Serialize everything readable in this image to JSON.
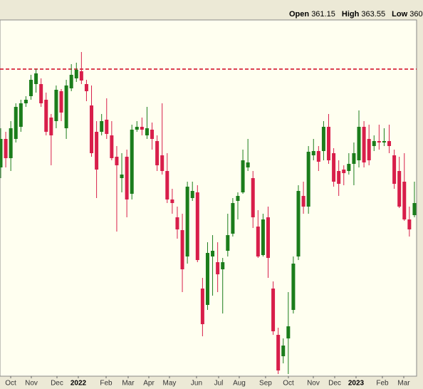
{
  "header": [
    {
      "label": "Open",
      "value": 361.15
    },
    {
      "label": "High",
      "value": 363.55
    },
    {
      "label": "Low",
      "value": 360
    }
  ],
  "chart_data": {
    "type": "candlestick",
    "up_color": "#1b7d1b",
    "down_color": "#d81e4a",
    "reference_line": {
      "value": 459.3,
      "color": "#d0021b"
    },
    "ylim": [
      330,
      480
    ],
    "xlim": [
      -0.14,
      82.43
    ],
    "xticks": [
      {
        "value": 1.98,
        "label": "Oct"
      },
      {
        "value": 6.07,
        "label": "Nov"
      },
      {
        "value": 11.15,
        "label": "Dec"
      },
      {
        "value": 15.38,
        "label": "2022"
      },
      {
        "value": 20.89,
        "label": "Feb"
      },
      {
        "value": 25.26,
        "label": "Mar"
      },
      {
        "value": 29.36,
        "label": "Apr"
      },
      {
        "value": 33.45,
        "label": "May"
      },
      {
        "value": 38.81,
        "label": "Jun"
      },
      {
        "value": 43.19,
        "label": "Jul"
      },
      {
        "value": 47.28,
        "label": "Aug"
      },
      {
        "value": 52.5,
        "label": "Sep"
      },
      {
        "value": 57.02,
        "label": "Oct"
      },
      {
        "value": 61.96,
        "label": "Nov"
      },
      {
        "value": 66.2,
        "label": "Dec"
      },
      {
        "value": 70.43,
        "label": "2023"
      },
      {
        "value": 75.65,
        "label": "Feb"
      },
      {
        "value": 79.89,
        "label": "Mar"
      }
    ],
    "open": [
      417.9,
      429.9,
      421.8,
      429.9,
      435,
      444.9,
      447.9,
      453,
      453,
      446.4,
      438.9,
      437.4,
      450,
      434.4,
      451.2,
      455.4,
      458.4,
      453,
      444,
      432.9,
      432.9,
      438,
      431.4,
      422.4,
      413.4,
      422.4,
      406.8,
      433.8,
      435,
      431.4,
      433.8,
      429,
      423,
      416.4,
      404.4,
      396.9,
      391.5,
      380.4,
      405,
      407.4,
      366.9,
      360,
      380.4,
      378,
      375,
      382.8,
      390,
      403.8,
      407.4,
      417.9,
      413.4,
      393,
      381,
      396.9,
      366.9,
      347.4,
      338.4,
      345.9,
      357.9,
      380.4,
      405.9,
      401.4,
      423,
      424.8,
      424.8,
      435,
      423.9,
      416.4,
      417,
      416.4,
      419.4,
      420.9,
      435,
      429.9,
      426.9,
      429,
      428.4,
      429,
      423,
      416.4,
      411.9,
      396,
      397.8
    ],
    "high": [
      434.4,
      432.9,
      437.4,
      444.9,
      446.4,
      447.9,
      456.9,
      459.3,
      455.4,
      449.4,
      440.4,
      452.4,
      450.9,
      454.8,
      461.4,
      462,
      466.5,
      454.8,
      452.4,
      437.4,
      440.4,
      447,
      437.4,
      426.9,
      423.9,
      425.4,
      435.9,
      437.4,
      438.9,
      443.4,
      436.8,
      431.4,
      444.9,
      423.9,
      408.9,
      401.4,
      398.4,
      411.9,
      411.9,
      410.4,
      371.4,
      386.4,
      389.4,
      386.4,
      379.8,
      398.4,
      405,
      407.4,
      425.4,
      429.9,
      416.4,
      399.9,
      398.4,
      401.4,
      369.9,
      350.4,
      345.9,
      365.4,
      380.4,
      410.4,
      411.9,
      426.9,
      429.9,
      426.9,
      437.4,
      440.4,
      426,
      420.9,
      418.8,
      423.9,
      428.4,
      441.9,
      437.4,
      435.9,
      431.4,
      435.9,
      434.4,
      435.9,
      425.4,
      422.4,
      423.9,
      401.4,
      411.9
    ],
    "low": [
      413.4,
      417.9,
      416.4,
      428.4,
      432.9,
      443.4,
      446.4,
      449.4,
      443.4,
      431.4,
      418.8,
      434.4,
      437.4,
      429.9,
      450,
      453.9,
      453,
      445.8,
      422.4,
      405,
      431.4,
      429.9,
      420.9,
      390.9,
      407.4,
      396.9,
      404.4,
      432.9,
      431.4,
      429.9,
      425.4,
      416.4,
      414.9,
      402.9,
      398.4,
      387.9,
      365.4,
      377.4,
      403.8,
      378,
      346.8,
      357.9,
      363.9,
      365.4,
      356.4,
      380.4,
      388.8,
      396,
      406.8,
      416.4,
      392.4,
      379.8,
      380.4,
      371.4,
      347.4,
      330.9,
      335.4,
      330.9,
      356.4,
      378.9,
      398.4,
      398.4,
      420.9,
      416.4,
      420.9,
      419.4,
      409.8,
      405.9,
      410.4,
      414.9,
      410.4,
      417.9,
      417.9,
      418.8,
      424.8,
      425.4,
      426.9,
      423.9,
      408.9,
      400.8,
      395.4,
      388.8,
      396.9
    ],
    "close": [
      429.9,
      421.8,
      434.4,
      443.4,
      444.9,
      446.4,
      454.8,
      457.5,
      444.9,
      432.9,
      431.4,
      450.6,
      441,
      452.4,
      456.9,
      459,
      454.5,
      450,
      423.9,
      417,
      437.4,
      432,
      421.8,
      418.8,
      414.9,
      404.4,
      433.8,
      435,
      433.8,
      434.4,
      429.9,
      418.8,
      416.4,
      404.4,
      402.9,
      391.8,
      375,
      409.8,
      408,
      378.9,
      351.9,
      381.9,
      382.8,
      372.9,
      378,
      389.4,
      402.9,
      405.9,
      420.9,
      420,
      396.9,
      380.4,
      396,
      379.8,
      348.9,
      332.4,
      342.9,
      351,
      377.4,
      408,
      401.4,
      424.5,
      424.8,
      420.3,
      435,
      420.9,
      411.9,
      411,
      415.5,
      419.4,
      423.9,
      435,
      420,
      420.9,
      429,
      428.4,
      429,
      426.9,
      411,
      401.4,
      396,
      391.8,
      402.9
    ]
  }
}
